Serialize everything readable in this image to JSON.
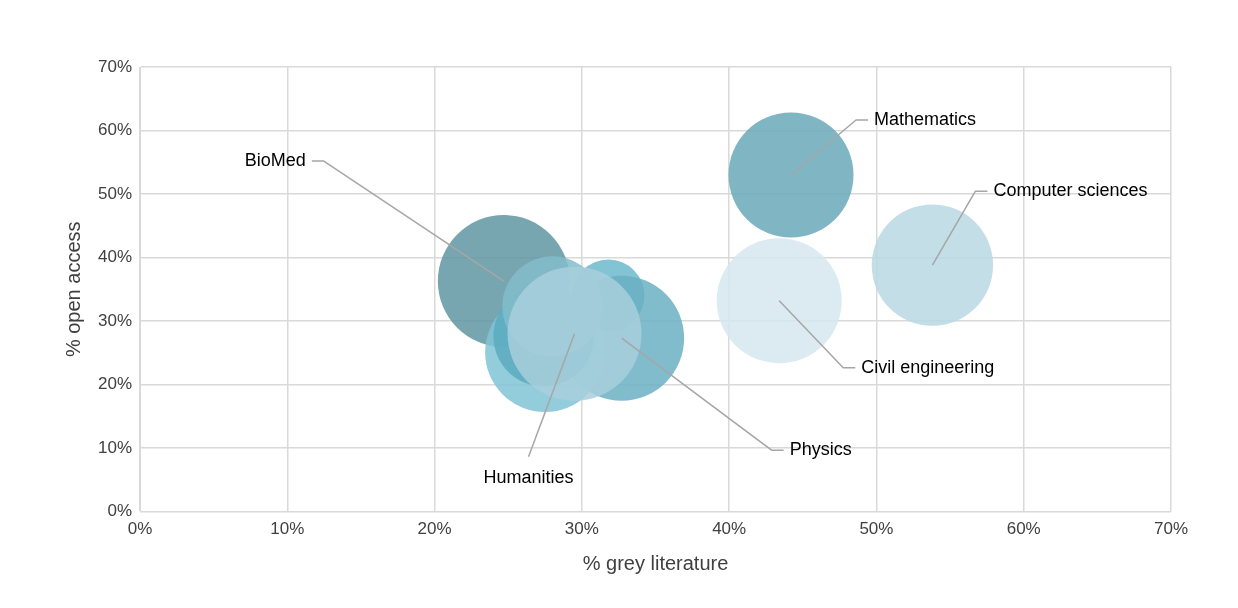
{
  "chart_data": {
    "type": "bubble",
    "xlabel": "% grey literature",
    "ylabel": "% open access",
    "series": [
      {
        "x": [
          24.7,
          44.2,
          53.8,
          43.4,
          31.8,
          32.7,
          27.5,
          27.4,
          28.0,
          29.5
        ],
        "values": [
          36.3,
          53.0,
          38.8,
          33.2,
          34.0,
          27.3,
          25.1,
          27.6,
          32.3,
          28.0
        ],
        "sizes": [
          0.97,
          0.87,
          0.82,
          0.87,
          0.29,
          0.87,
          0.8,
          0.56,
          0.56,
          1
        ],
        "colors": [
          "#5f96a2",
          "#6aa8b9",
          "#b8d8e2",
          "#d5e8ef",
          "#6cb8cc",
          "#6ab0c2",
          "#80c3d5",
          "#5aaac0",
          "#82bccb",
          "#a8cfdc"
        ]
      }
    ],
    "annotations": [
      {
        "text": "BioMed",
        "x": 24.7,
        "y": 36.3
      },
      {
        "text": "Mathematics",
        "x": 44.2,
        "y": 53.0
      },
      {
        "text": "Computer sciences",
        "x": 53.8,
        "y": 38.8
      },
      {
        "text": "Civil engineering",
        "x": 43.4,
        "y": 33.2
      },
      {
        "text": "Physics",
        "x": 32.7,
        "y": 27.3
      },
      {
        "text": "Humanities",
        "x": 29.5,
        "y": 28.0
      }
    ],
    "xlim": [
      0,
      70
    ],
    "xticks": [
      {
        "value": 0,
        "label": "0%"
      },
      {
        "value": 10,
        "label": "10%"
      },
      {
        "value": 20,
        "label": "20%"
      },
      {
        "value": 30,
        "label": "30%"
      },
      {
        "value": 40,
        "label": "40%"
      },
      {
        "value": 50,
        "label": "50%"
      },
      {
        "value": 60,
        "label": "60%"
      },
      {
        "value": 70,
        "label": "70%"
      }
    ],
    "ylim": [
      0,
      70
    ],
    "yticks": [
      {
        "value": 0,
        "label": "0%"
      },
      {
        "value": 10,
        "label": "10%"
      },
      {
        "value": 20,
        "label": "20%"
      },
      {
        "value": 30,
        "label": "30%"
      },
      {
        "value": 40,
        "label": "40%"
      },
      {
        "value": 50,
        "label": "50%"
      },
      {
        "value": 60,
        "label": "60%"
      },
      {
        "value": 70,
        "label": "70%"
      }
    ],
    "grid": true,
    "legend": false
  }
}
